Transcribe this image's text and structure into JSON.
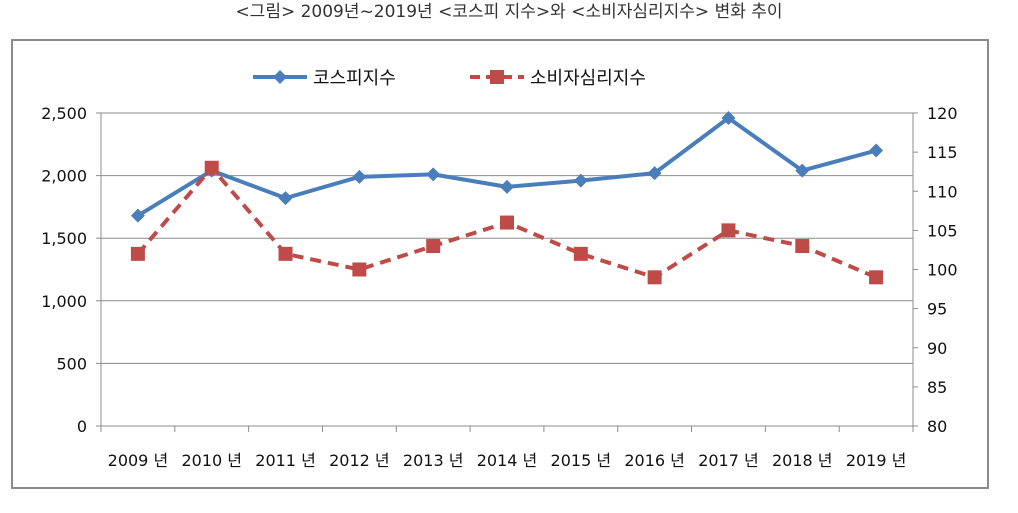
{
  "title": "<그림> 2009년~2019년 <코스피 지수>와 <소비자심리지수> 변화 추이",
  "chart_data": {
    "type": "line",
    "title": "<그림> 2009년~2019년 <코스피 지수>와 <소비자심리지수> 변화 추이",
    "categories": [
      "2009 년",
      "2010 년",
      "2011 년",
      "2012 년",
      "2013 년",
      "2014 년",
      "2015 년",
      "2016 년",
      "2017 년",
      "2018 년",
      "2019 년"
    ],
    "left_axis": {
      "ylim": [
        0,
        2500
      ],
      "ticks": [
        "0",
        "500",
        "1,000",
        "1,500",
        "2,000",
        "2,500"
      ]
    },
    "right_axis": {
      "ylim": [
        80,
        120
      ],
      "ticks": [
        "80",
        "85",
        "90",
        "95",
        "100",
        "105",
        "110",
        "115",
        "120"
      ]
    },
    "grid": true,
    "legend_position": "top",
    "series": [
      {
        "name": "코스피지수",
        "axis": "left",
        "color": "#4a7ebb",
        "marker": "diamond",
        "line": "solid",
        "values": [
          1680,
          2040,
          1820,
          1990,
          2010,
          1910,
          1960,
          2020,
          2460,
          2040,
          2200
        ]
      },
      {
        "name": "소비자심리지수",
        "axis": "right",
        "color": "#be4b48",
        "marker": "square",
        "line": "dashed",
        "values": [
          102,
          113,
          102,
          100,
          103,
          106,
          102,
          99,
          105,
          103,
          99
        ]
      }
    ]
  }
}
